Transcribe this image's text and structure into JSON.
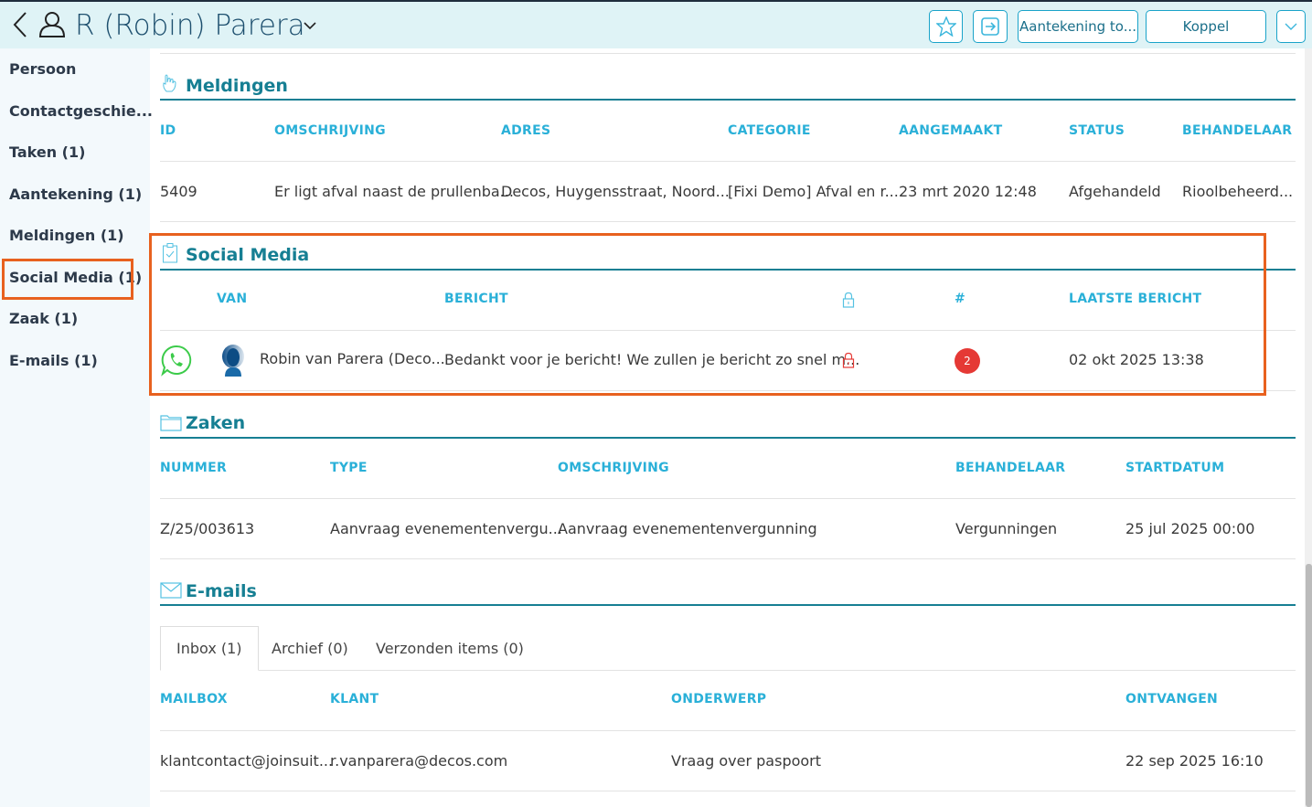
{
  "header": {
    "title": "R (Robin) Parera",
    "buttons": {
      "note": "Aantekening to...",
      "link": "Koppel"
    }
  },
  "sidebar": {
    "items": [
      {
        "label": "Persoon"
      },
      {
        "label": "Contactgeschie..."
      },
      {
        "label": "Taken (1)"
      },
      {
        "label": "Aantekening (1)"
      },
      {
        "label": "Meldingen (1)"
      },
      {
        "label": "Social Media (1)"
      },
      {
        "label": "Zaak (1)"
      },
      {
        "label": "E-mails (1)"
      }
    ],
    "active": "Social Media (1)"
  },
  "meldingen": {
    "title": "Meldingen",
    "columns": [
      "ID",
      "OMSCHRIJVING",
      "ADRES",
      "CATEGORIE",
      "AANGEMAAKT",
      "STATUS",
      "BEHANDELAAR"
    ],
    "rows": [
      [
        "5409",
        "Er ligt afval naast de prullenba...",
        "Decos, Huygensstraat, Noord...",
        "[Fixi Demo] Afval en r...",
        "23 mrt 2020 12:48",
        "Afgehandeld",
        "Rioolbeheerd..."
      ]
    ]
  },
  "social": {
    "title": "Social Media",
    "columns": [
      "VAN",
      "BERICHT",
      "#",
      "LAATSTE BERICHT"
    ],
    "rows": [
      {
        "channel": "whatsapp-icon",
        "van": "Robin van Parera (Deco...",
        "bericht": "Bedankt voor je bericht! We zullen je bericht zo snel m...",
        "locked": true,
        "count": "2",
        "laatste": "02 okt 2025 13:38"
      }
    ]
  },
  "zaken": {
    "title": "Zaken",
    "columns": [
      "NUMMER",
      "TYPE",
      "OMSCHRIJVING",
      "BEHANDELAAR",
      "STARTDATUM"
    ],
    "rows": [
      [
        "Z/25/003613",
        "Aanvraag evenementenvergu...",
        "Aanvraag evenementenvergunning",
        "Vergunningen",
        "25 jul 2025 00:00"
      ]
    ]
  },
  "emails": {
    "title": "E-mails",
    "tabs": [
      "Inbox (1)",
      "Archief (0)",
      "Verzonden items (0)"
    ],
    "active_tab": "Inbox (1)",
    "columns": [
      "MAILBOX",
      "KLANT",
      "ONDERWERP",
      "ONTVANGEN"
    ],
    "rows": [
      [
        "klantcontact@joinsuit...",
        "r.vanparera@decos.com",
        "Vraag over paspoort",
        "22 sep 2025 16:10"
      ]
    ]
  },
  "colors": {
    "accent": "#167f93",
    "header_text": "#2ab0d8",
    "highlight": "#e8611f",
    "badge": "#e53935"
  }
}
